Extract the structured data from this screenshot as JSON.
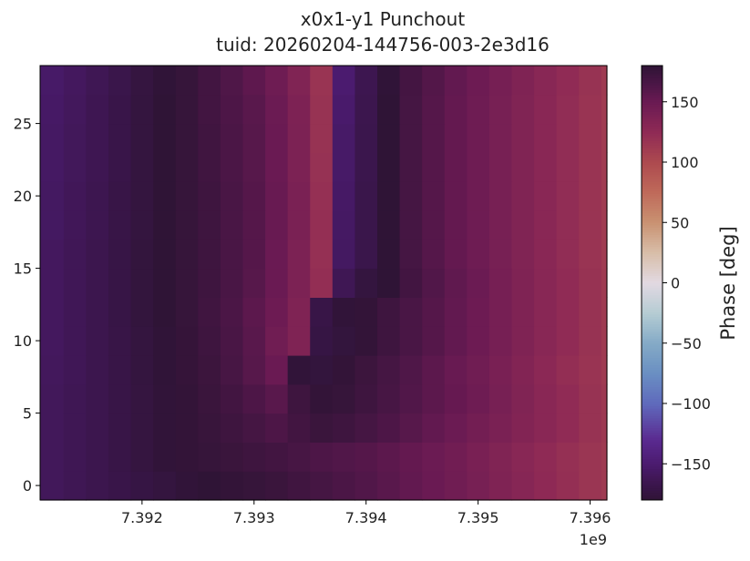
{
  "chart_data": {
    "type": "heatmap",
    "title": "x0x1-y1 Punchout",
    "subtitle": "tuid: 20260204-144756-003-2e3d16",
    "xlabel": "",
    "ylabel": "",
    "x_offset_label": "1e9",
    "xlim": [
      7391090000.0,
      7396150000.0
    ],
    "ylim": [
      -1,
      29
    ],
    "x_ticks": [
      7.392,
      7.393,
      7.394,
      7.395,
      7.396
    ],
    "x_tick_labels": [
      "7.392",
      "7.393",
      "7.394",
      "7.395",
      "7.396"
    ],
    "y_ticks": [
      0,
      5,
      10,
      15,
      20,
      25
    ],
    "y_tick_labels": [
      "0",
      "5",
      "10",
      "15",
      "20",
      "25"
    ],
    "colorbar": {
      "label": "Phase [deg]",
      "colormap": "twilight_shifted",
      "range": [
        -180,
        180
      ],
      "ticks": [
        -150,
        -100,
        -50,
        0,
        50,
        100,
        150
      ],
      "tick_labels": [
        "−150",
        "−100",
        "−50",
        "0",
        "50",
        "100",
        "150"
      ]
    },
    "x": [
      7391200000.0,
      7391400000.0,
      7391600000.0,
      7391800000.0,
      7392000000.0,
      7392200000.0,
      7392400000.0,
      7392600000.0,
      7392800000.0,
      7393000000.0,
      7393200000.0,
      7393400000.0,
      7393600000.0,
      7393800000.0,
      7394000000.0,
      7394200000.0,
      7394400000.0,
      7394600000.0,
      7394800000.0,
      7395000000.0,
      7395200000.0,
      7395400000.0,
      7395600000.0,
      7395800000.0,
      7396000000.0,
      7396200000.0
    ],
    "y": [
      0,
      2,
      4,
      6,
      8,
      10,
      12,
      14,
      16,
      18,
      20,
      22,
      24,
      26,
      28
    ],
    "z": [
      [
        -160,
        -163,
        -166,
        -169,
        -172,
        -175,
        -178,
        180,
        178,
        176,
        174,
        171,
        168,
        165,
        162,
        158,
        154,
        150,
        146,
        141,
        136,
        131,
        126,
        121,
        116,
        112
      ],
      [
        -160,
        -163,
        -166,
        -170,
        -174,
        -178,
        178,
        176,
        174,
        172,
        170,
        167,
        164,
        162,
        160,
        157,
        153,
        149,
        145,
        140,
        135,
        130,
        125,
        120,
        116,
        112
      ],
      [
        -160,
        -163,
        -166,
        -170,
        -174,
        -178,
        178,
        175,
        172,
        168,
        164,
        170,
        174,
        172,
        168,
        164,
        159,
        154,
        149,
        144,
        139,
        134,
        129,
        124,
        118,
        113
      ],
      [
        -160,
        -163,
        -166,
        -170,
        -174,
        -178,
        178,
        174,
        170,
        164,
        158,
        172,
        178,
        176,
        172,
        167,
        162,
        157,
        152,
        147,
        141,
        135,
        129,
        124,
        118,
        113
      ],
      [
        -159,
        -162,
        -166,
        -170,
        -175,
        -179,
        177,
        173,
        167,
        159,
        150,
        -178,
        -176,
        178,
        173,
        168,
        163,
        157,
        151,
        146,
        140,
        134,
        128,
        122,
        117,
        112
      ],
      [
        -158,
        -162,
        -166,
        -170,
        -175,
        -179,
        177,
        172,
        166,
        158,
        146,
        136,
        -172,
        -176,
        178,
        172,
        166,
        160,
        154,
        148,
        142,
        136,
        130,
        124,
        118,
        112
      ],
      [
        -158,
        -162,
        -166,
        -171,
        -176,
        -180,
        176,
        171,
        165,
        157,
        148,
        136,
        -170,
        -178,
        178,
        172,
        166,
        160,
        154,
        148,
        142,
        136,
        130,
        124,
        118,
        112
      ],
      [
        -158,
        -162,
        -166,
        -171,
        -176,
        -180,
        176,
        172,
        166,
        159,
        150,
        138,
        122,
        -163,
        -175,
        -180,
        170,
        162,
        155,
        149,
        142,
        136,
        130,
        124,
        118,
        112
      ],
      [
        -158,
        -162,
        -166,
        -171,
        -176,
        -180,
        176,
        172,
        166,
        160,
        150,
        138,
        120,
        -157,
        -168,
        -180,
        168,
        160,
        153,
        147,
        141,
        135,
        129,
        123,
        117,
        111
      ],
      [
        -157,
        -161,
        -165,
        -170,
        -175,
        -180,
        176,
        172,
        166,
        160,
        151,
        139,
        121,
        -156,
        -168,
        -180,
        168,
        160,
        153,
        147,
        141,
        135,
        129,
        123,
        117,
        111
      ],
      [
        -157,
        -161,
        -165,
        -170,
        -175,
        -180,
        176,
        172,
        166,
        160,
        151,
        139,
        120,
        -155,
        -168,
        -180,
        168,
        160,
        153,
        147,
        141,
        135,
        129,
        123,
        117,
        111
      ],
      [
        -156,
        -160,
        -164,
        -169,
        -175,
        -180,
        176,
        171,
        165,
        159,
        150,
        138,
        119,
        -154,
        -167,
        -180,
        168,
        160,
        153,
        147,
        141,
        135,
        129,
        123,
        117,
        111
      ],
      [
        -156,
        -160,
        -164,
        -169,
        -175,
        -180,
        176,
        171,
        165,
        159,
        150,
        138,
        118,
        -154,
        -167,
        -180,
        168,
        160,
        153,
        147,
        141,
        135,
        129,
        123,
        117,
        111
      ],
      [
        -155,
        -159,
        -164,
        -169,
        -175,
        -180,
        176,
        170,
        164,
        158,
        149,
        137,
        118,
        -152,
        -166,
        -180,
        168,
        160,
        153,
        147,
        141,
        135,
        129,
        123,
        117,
        111
      ],
      [
        -154,
        -158,
        -163,
        -168,
        -174,
        -179,
        176,
        170,
        163,
        156,
        147,
        135,
        117,
        -150,
        -165,
        -179,
        169,
        161,
        154,
        148,
        142,
        136,
        130,
        124,
        118,
        112
      ]
    ]
  }
}
